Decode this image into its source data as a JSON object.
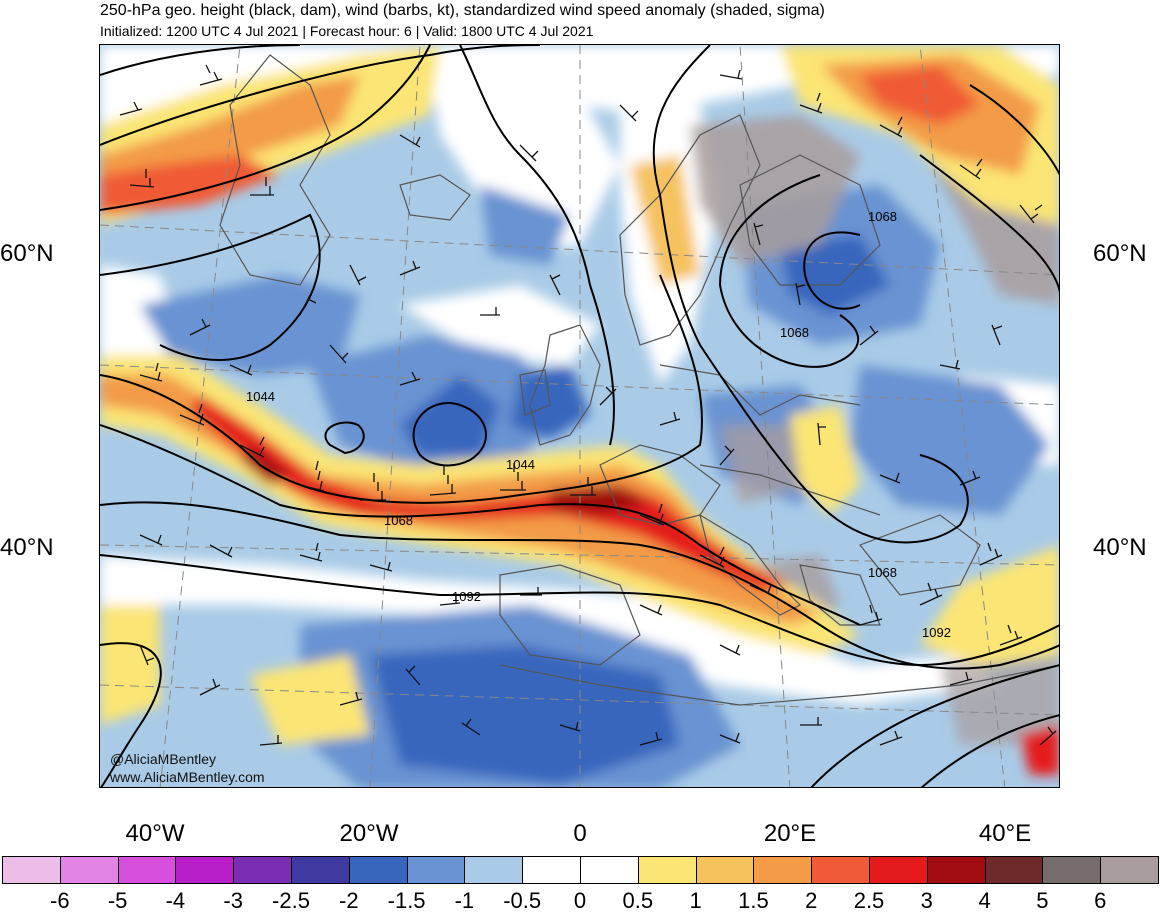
{
  "header": {
    "title": "250-hPa geo. height (black, dam), wind (barbs, kt), standardized wind speed anomaly (shaded, sigma)",
    "subtitle": "Initialized: 1200 UTC 4 Jul 2021 | Forecast hour: 6 | Valid: 1800 UTC 4 Jul 2021"
  },
  "map": {
    "lat_labels": [
      "60°N",
      "40°N"
    ],
    "lon_labels": [
      "40°W",
      "20°W",
      "0",
      "20°E",
      "40°E"
    ],
    "contour_labels": [
      "1044",
      "1044",
      "1068",
      "1068",
      "1068",
      "1068",
      "1092",
      "1092"
    ],
    "contour_color": "#000000",
    "coastline_color": "#555555"
  },
  "credits": {
    "handle": "@AliciaMBentley",
    "site": "www.AliciaMBentley.com"
  },
  "colorbar": {
    "labels": [
      "-6",
      "-5",
      "-4",
      "-3",
      "-2.5",
      "-2",
      "-1.5",
      "-1",
      "-0.5",
      "0",
      "0.5",
      "1",
      "1.5",
      "2",
      "2.5",
      "3",
      "4",
      "5",
      "6"
    ],
    "colors": [
      "#ebbde8",
      "#e284e5",
      "#d650dd",
      "#b91fc8",
      "#7a2fb3",
      "#3e3aa0",
      "#3866bd",
      "#6993d2",
      "#a9cbe7",
      "#ffffff",
      "#ffffff",
      "#fbe574",
      "#f6c25e",
      "#f39b47",
      "#f05a36",
      "#e41a1c",
      "#a10d10",
      "#6e2a2a",
      "#766c6c",
      "#a99c9c"
    ]
  }
}
